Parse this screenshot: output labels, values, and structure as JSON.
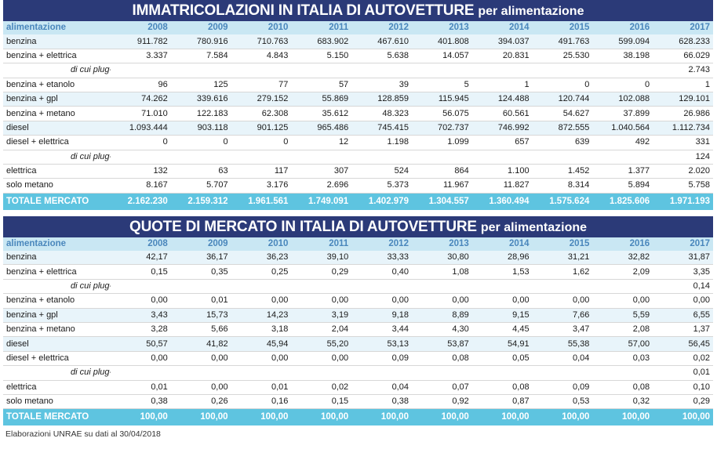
{
  "years": [
    "2008",
    "2009",
    "2010",
    "2011",
    "2012",
    "2013",
    "2014",
    "2015",
    "2016",
    "2017"
  ],
  "colors": {
    "title_bg": "#2b3a78",
    "header_bg": "#c9e7f3",
    "header_text": "#4a87bc",
    "total_bg": "#5ec4e0"
  },
  "table1": {
    "title_main": "IMMATRICOLAZIONI IN ITALIA DI AUTOVETTURE",
    "title_sub": "per alimentazione",
    "header_label": "alimentazione",
    "rows": [
      {
        "label": "benzina",
        "type": "shade",
        "values": [
          "911.782",
          "780.916",
          "710.763",
          "683.902",
          "467.610",
          "401.808",
          "394.037",
          "491.763",
          "599.094",
          "628.233"
        ]
      },
      {
        "label": "benzina + elettrica",
        "type": "plain",
        "values": [
          "3.337",
          "7.584",
          "4.843",
          "5.150",
          "5.638",
          "14.057",
          "20.831",
          "25.530",
          "38.198",
          "66.029"
        ]
      },
      {
        "label": "di cui plug-in",
        "type": "plugin",
        "values": [
          "",
          "",
          "",
          "",
          "",
          "",
          "",
          "",
          "",
          "2.743"
        ]
      },
      {
        "label": "benzina + etanolo",
        "type": "plain",
        "values": [
          "96",
          "125",
          "77",
          "57",
          "39",
          "5",
          "1",
          "0",
          "0",
          "1"
        ]
      },
      {
        "label": "benzina + gpl",
        "type": "shade",
        "values": [
          "74.262",
          "339.616",
          "279.152",
          "55.869",
          "128.859",
          "115.945",
          "124.488",
          "120.744",
          "102.088",
          "129.101"
        ]
      },
      {
        "label": "benzina + metano",
        "type": "plain",
        "values": [
          "71.010",
          "122.183",
          "62.308",
          "35.612",
          "48.323",
          "56.075",
          "60.561",
          "54.627",
          "37.899",
          "26.986"
        ]
      },
      {
        "label": "diesel",
        "type": "shade",
        "values": [
          "1.093.444",
          "903.118",
          "901.125",
          "965.486",
          "745.415",
          "702.737",
          "746.992",
          "872.555",
          "1.040.564",
          "1.112.734"
        ]
      },
      {
        "label": "diesel + elettrica",
        "type": "plain",
        "values": [
          "0",
          "0",
          "0",
          "12",
          "1.198",
          "1.099",
          "657",
          "639",
          "492",
          "331"
        ]
      },
      {
        "label": "di cui plug-in",
        "type": "plugin",
        "values": [
          "",
          "",
          "",
          "",
          "",
          "",
          "",
          "",
          "",
          "124"
        ]
      },
      {
        "label": "elettrica",
        "type": "plain",
        "values": [
          "132",
          "63",
          "117",
          "307",
          "524",
          "864",
          "1.100",
          "1.452",
          "1.377",
          "2.020"
        ]
      },
      {
        "label": "solo metano",
        "type": "plain",
        "values": [
          "8.167",
          "5.707",
          "3.176",
          "2.696",
          "5.373",
          "11.967",
          "11.827",
          "8.314",
          "5.894",
          "5.758"
        ]
      }
    ],
    "total": {
      "label": "TOTALE MERCATO",
      "values": [
        "2.162.230",
        "2.159.312",
        "1.961.561",
        "1.749.091",
        "1.402.979",
        "1.304.557",
        "1.360.494",
        "1.575.624",
        "1.825.606",
        "1.971.193"
      ]
    }
  },
  "table2": {
    "title_main": "QUOTE DI MERCATO IN ITALIA DI AUTOVETTURE",
    "title_sub": "per alimentazione",
    "header_label": "alimentazione",
    "rows": [
      {
        "label": "benzina",
        "type": "shade",
        "values": [
          "42,17",
          "36,17",
          "36,23",
          "39,10",
          "33,33",
          "30,80",
          "28,96",
          "31,21",
          "32,82",
          "31,87"
        ]
      },
      {
        "label": "benzina + elettrica",
        "type": "plain",
        "values": [
          "0,15",
          "0,35",
          "0,25",
          "0,29",
          "0,40",
          "1,08",
          "1,53",
          "1,62",
          "2,09",
          "3,35"
        ]
      },
      {
        "label": "di cui plug-in",
        "type": "plugin",
        "values": [
          "",
          "",
          "",
          "",
          "",
          "",
          "",
          "",
          "",
          "0,14"
        ]
      },
      {
        "label": "benzina + etanolo",
        "type": "plain",
        "values": [
          "0,00",
          "0,01",
          "0,00",
          "0,00",
          "0,00",
          "0,00",
          "0,00",
          "0,00",
          "0,00",
          "0,00"
        ]
      },
      {
        "label": "benzina + gpl",
        "type": "shade",
        "values": [
          "3,43",
          "15,73",
          "14,23",
          "3,19",
          "9,18",
          "8,89",
          "9,15",
          "7,66",
          "5,59",
          "6,55"
        ]
      },
      {
        "label": "benzina + metano",
        "type": "plain",
        "values": [
          "3,28",
          "5,66",
          "3,18",
          "2,04",
          "3,44",
          "4,30",
          "4,45",
          "3,47",
          "2,08",
          "1,37"
        ]
      },
      {
        "label": "diesel",
        "type": "shade",
        "values": [
          "50,57",
          "41,82",
          "45,94",
          "55,20",
          "53,13",
          "53,87",
          "54,91",
          "55,38",
          "57,00",
          "56,45"
        ]
      },
      {
        "label": "diesel + elettrica",
        "type": "plain",
        "values": [
          "0,00",
          "0,00",
          "0,00",
          "0,00",
          "0,09",
          "0,08",
          "0,05",
          "0,04",
          "0,03",
          "0,02"
        ]
      },
      {
        "label": "di cui plug-in",
        "type": "plugin",
        "values": [
          "",
          "",
          "",
          "",
          "",
          "",
          "",
          "",
          "",
          "0,01"
        ]
      },
      {
        "label": "elettrica",
        "type": "plain",
        "values": [
          "0,01",
          "0,00",
          "0,01",
          "0,02",
          "0,04",
          "0,07",
          "0,08",
          "0,09",
          "0,08",
          "0,10"
        ]
      },
      {
        "label": "solo metano",
        "type": "plain",
        "values": [
          "0,38",
          "0,26",
          "0,16",
          "0,15",
          "0,38",
          "0,92",
          "0,87",
          "0,53",
          "0,32",
          "0,29"
        ]
      }
    ],
    "total": {
      "label": "TOTALE MERCATO",
      "values": [
        "100,00",
        "100,00",
        "100,00",
        "100,00",
        "100,00",
        "100,00",
        "100,00",
        "100,00",
        "100,00",
        "100,00"
      ]
    }
  },
  "footnote": "Elaborazioni UNRAE su dati al 30/04/2018"
}
